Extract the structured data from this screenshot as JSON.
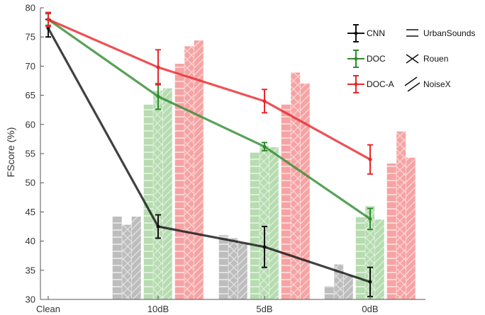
{
  "chart_data": {
    "type": "bar",
    "title": "",
    "xlabel": "",
    "ylabel": "FScore (%)",
    "ylim": [
      30,
      80
    ],
    "yticks": [
      30,
      35,
      40,
      45,
      50,
      55,
      60,
      65,
      70,
      75,
      80
    ],
    "categories": [
      "Clean",
      "10dB",
      "5dB",
      "0dB"
    ],
    "grid": false,
    "legend_position": "top-right",
    "noise_types": [
      {
        "name": "UrbanSounds",
        "pattern": "horizontal"
      },
      {
        "name": "Rouen",
        "pattern": "cross"
      },
      {
        "name": "NoiseX",
        "pattern": "diagonal"
      }
    ],
    "series": [
      {
        "name": "CNN",
        "color": "#111111",
        "bar_color": "#bdbdbd",
        "line_values": [
          76.5,
          42.5,
          39.0,
          33.0
        ],
        "error": [
          1.5,
          2.0,
          3.5,
          2.5
        ],
        "bars": [
          null,
          [
            44.2,
            42.8,
            44.2
          ],
          [
            41.0,
            40.5,
            39.6
          ],
          [
            32.3,
            36.0,
            34.1
          ]
        ]
      },
      {
        "name": "DOC",
        "color": "#2e8b2e",
        "bar_color": "#b6dcb0",
        "line_values": [
          78.0,
          64.8,
          56.2,
          43.8
        ],
        "error": [
          1.0,
          2.2,
          0.7,
          1.8
        ],
        "bars": [
          null,
          [
            63.4,
            65.8,
            66.2
          ],
          [
            55.2,
            56.3,
            56.1
          ],
          [
            44.1,
            46.0,
            43.7
          ]
        ]
      },
      {
        "name": "DOC-A",
        "color": "#e8262b",
        "bar_color": "#f7a3a3",
        "line_values": [
          78.0,
          69.8,
          64.0,
          54.0
        ],
        "error": [
          1.2,
          3.0,
          2.0,
          2.5
        ],
        "bars": [
          null,
          [
            70.4,
            73.4,
            74.4
          ],
          [
            63.4,
            68.9,
            67.0
          ],
          [
            53.3,
            58.8,
            54.3
          ]
        ]
      }
    ]
  }
}
